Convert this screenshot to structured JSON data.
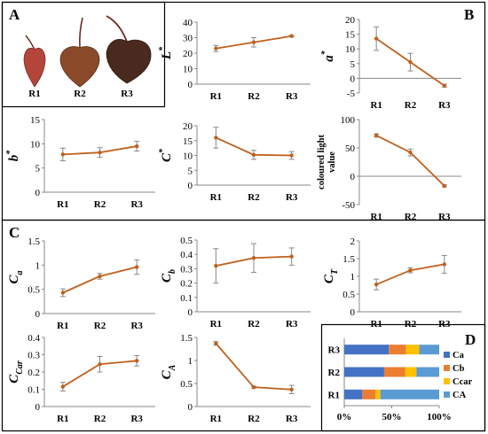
{
  "panel_labels": {
    "A": "A",
    "B": "B",
    "C": "C",
    "D": "D"
  },
  "leaf_labels": [
    "R1",
    "R2",
    "R3"
  ],
  "leaf_colors": {
    "r1_fill": "#b3453a",
    "r1_stroke": "#7a2a22",
    "r2_fill": "#8a4a2a",
    "r2_stroke": "#553019",
    "r3_fill": "#4a2a1e",
    "r3_stroke": "#2c1810",
    "stem": "#6b2a22"
  },
  "colors": {
    "line": "#c0601c",
    "error_bar": "#888888",
    "axis": "#888888",
    "Ca": "#4472c4",
    "Cb": "#ed7d31",
    "Ccar": "#ffc000",
    "CA": "#5b9bd5"
  },
  "chart_data": [
    {
      "id": "L",
      "type": "line",
      "ylabel_main": "L",
      "ylabel_sup": "*",
      "ylabel_sub": "",
      "categories": [
        "R1",
        "R2",
        "R3"
      ],
      "values": [
        23,
        27,
        31
      ],
      "errors": [
        2,
        3,
        0.5
      ],
      "ylim": [
        0,
        40
      ],
      "yticks": [
        0,
        10,
        20,
        30,
        40
      ],
      "ytick_labels": [
        "0",
        "10",
        "20",
        "30",
        "40"
      ]
    },
    {
      "id": "a",
      "type": "line",
      "ylabel_main": "a",
      "ylabel_sup": "*",
      "ylabel_sub": "",
      "categories": [
        "R1",
        "R2",
        "R3"
      ],
      "values": [
        13.5,
        5.5,
        -2.5
      ],
      "errors": [
        4,
        3,
        0.5
      ],
      "ylim": [
        -5,
        20
      ],
      "yticks": [
        -5,
        0,
        5,
        10,
        15,
        20
      ],
      "ytick_labels": [
        "-5",
        "0",
        "5",
        "10",
        "15",
        "20"
      ]
    },
    {
      "id": "b",
      "type": "line",
      "ylabel_main": "b",
      "ylabel_sup": "*",
      "ylabel_sub": "",
      "categories": [
        "R1",
        "R2",
        "R3"
      ],
      "values": [
        7.8,
        8.2,
        9.5
      ],
      "errors": [
        1.3,
        1,
        1
      ],
      "ylim": [
        0,
        15
      ],
      "yticks": [
        0,
        5,
        10,
        15
      ],
      "ytick_labels": [
        "0",
        "5",
        "10",
        "15"
      ]
    },
    {
      "id": "C",
      "type": "line",
      "ylabel_main": "C",
      "ylabel_sup": "*",
      "ylabel_sub": "",
      "categories": [
        "R1",
        "R2",
        "R3"
      ],
      "values": [
        16,
        10.2,
        10
      ],
      "errors": [
        3.5,
        1.5,
        1.3
      ],
      "ylim": [
        0,
        20
      ],
      "yticks": [
        0,
        5,
        10,
        15,
        20
      ],
      "ytick_labels": [
        "0",
        "5",
        "10",
        "15",
        "20"
      ]
    },
    {
      "id": "clv",
      "type": "line",
      "ylabel_lines": [
        "coloured light",
        "value"
      ],
      "categories": [
        "R1",
        "R2",
        "R3"
      ],
      "values": [
        72,
        42,
        -17
      ],
      "errors": [
        3,
        6,
        2
      ],
      "ylim": [
        -50,
        100
      ],
      "yticks": [
        -50,
        0,
        50,
        100
      ],
      "ytick_labels": [
        "-50",
        "0",
        "50",
        "100"
      ]
    },
    {
      "id": "Ca",
      "type": "line",
      "ylabel_main": "C",
      "ylabel_sup": "",
      "ylabel_sub": "a",
      "categories": [
        "R1",
        "R2",
        "R3"
      ],
      "values": [
        0.43,
        0.77,
        0.96
      ],
      "errors": [
        0.08,
        0.06,
        0.15
      ],
      "ylim": [
        0,
        1.5
      ],
      "yticks": [
        0,
        0.5,
        1,
        1.5
      ],
      "ytick_labels": [
        "0",
        "0.5",
        "1",
        "1.5"
      ]
    },
    {
      "id": "Cb",
      "type": "line",
      "ylabel_main": "C",
      "ylabel_sup": "",
      "ylabel_sub": "b",
      "categories": [
        "R1",
        "R2",
        "R3"
      ],
      "values": [
        0.32,
        0.375,
        0.385
      ],
      "errors": [
        0.12,
        0.1,
        0.06
      ],
      "ylim": [
        0,
        0.5
      ],
      "yticks": [
        0,
        0.1,
        0.2,
        0.3,
        0.4,
        0.5
      ],
      "ytick_labels": [
        "0",
        "0.1",
        "0.2",
        "0.3",
        "0.4",
        "0.5"
      ]
    },
    {
      "id": "CT",
      "type": "line",
      "ylabel_main": "C",
      "ylabel_sup": "",
      "ylabel_sub": "T",
      "categories": [
        "R1",
        "R2",
        "R3"
      ],
      "values": [
        0.77,
        1.17,
        1.34
      ],
      "errors": [
        0.15,
        0.07,
        0.25
      ],
      "ylim": [
        0,
        2
      ],
      "yticks": [
        0,
        0.5,
        1,
        1.5,
        2
      ],
      "ytick_labels": [
        "0",
        "0.5",
        "1",
        "1.5",
        "2"
      ]
    },
    {
      "id": "Ccar",
      "type": "line",
      "ylabel_main": "C",
      "ylabel_sup": "",
      "ylabel_sub": "Car",
      "categories": [
        "R1",
        "R2",
        "R3"
      ],
      "values": [
        0.115,
        0.245,
        0.265
      ],
      "errors": [
        0.025,
        0.045,
        0.03
      ],
      "ylim": [
        0,
        0.4
      ],
      "yticks": [
        0,
        0.1,
        0.2,
        0.3,
        0.4
      ],
      "ytick_labels": [
        "0",
        "0.1",
        "0.2",
        "0.3",
        "0.4"
      ]
    },
    {
      "id": "CA",
      "type": "line",
      "ylabel_main": "C",
      "ylabel_sup": "",
      "ylabel_sub": "A",
      "categories": [
        "R1",
        "R2",
        "R3"
      ],
      "values": [
        1.37,
        0.42,
        0.37
      ],
      "errors": [
        0.04,
        0.02,
        0.09
      ],
      "ylim": [
        0,
        1.5
      ],
      "yticks": [
        0,
        0.5,
        1,
        1.5
      ],
      "ytick_labels": [
        "0",
        "0.5",
        "1",
        "1.5"
      ]
    },
    {
      "id": "D",
      "type": "bar",
      "orientation": "horizontal",
      "stacked": "percent",
      "categories": [
        "R3",
        "R2",
        "R1"
      ],
      "series": [
        {
          "name": "Ca",
          "values": [
            47,
            42,
            19
          ]
        },
        {
          "name": "Cb",
          "values": [
            18,
            22,
            14
          ]
        },
        {
          "name": "Ccar",
          "values": [
            14,
            12,
            5
          ]
        },
        {
          "name": "CA",
          "values": [
            21,
            24,
            62
          ]
        }
      ],
      "xlim": [
        0,
        100
      ],
      "xticks": [
        0,
        50,
        100
      ],
      "xtick_labels": [
        "0%",
        "50%",
        "100%"
      ],
      "legend_position": "right"
    }
  ]
}
